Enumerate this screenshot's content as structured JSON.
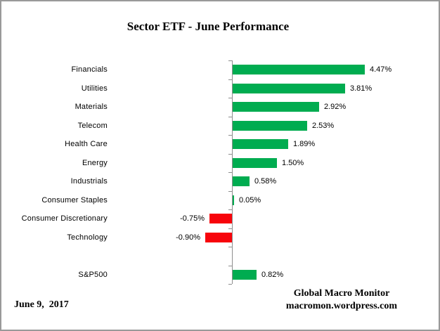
{
  "chart_data": {
    "type": "bar",
    "orientation": "horizontal",
    "title": "Sector ETF - June Performance",
    "categories": [
      "Financials",
      "Utilities",
      "Materials",
      "Telecom",
      "Health Care",
      "Energy",
      "Industrials",
      "Consumer Staples",
      "Consumer Discretionary",
      "Technology",
      "",
      "S&P500"
    ],
    "values": [
      4.47,
      3.81,
      2.92,
      2.53,
      1.89,
      1.5,
      0.58,
      0.05,
      -0.75,
      -0.9,
      null,
      0.82
    ],
    "value_labels": [
      "4.47%",
      "3.81%",
      "2.92%",
      "2.53%",
      "1.89%",
      "1.50%",
      "0.58%",
      "0.05%",
      "-0.75%",
      "-0.90%",
      "",
      "0.82%"
    ],
    "xlabel": "",
    "ylabel": "",
    "xlim": [
      -1.5,
      4.7
    ],
    "grid": false,
    "legend": false,
    "data_labels": true,
    "positive_color": "#00AC50",
    "negative_color": "#F7040C",
    "axis_color": "#8E8E8E"
  },
  "footer": {
    "date": "June 9,  2017",
    "credit_line1": "Global Macro Monitor",
    "credit_line2": "macromon.wordpress.com"
  }
}
